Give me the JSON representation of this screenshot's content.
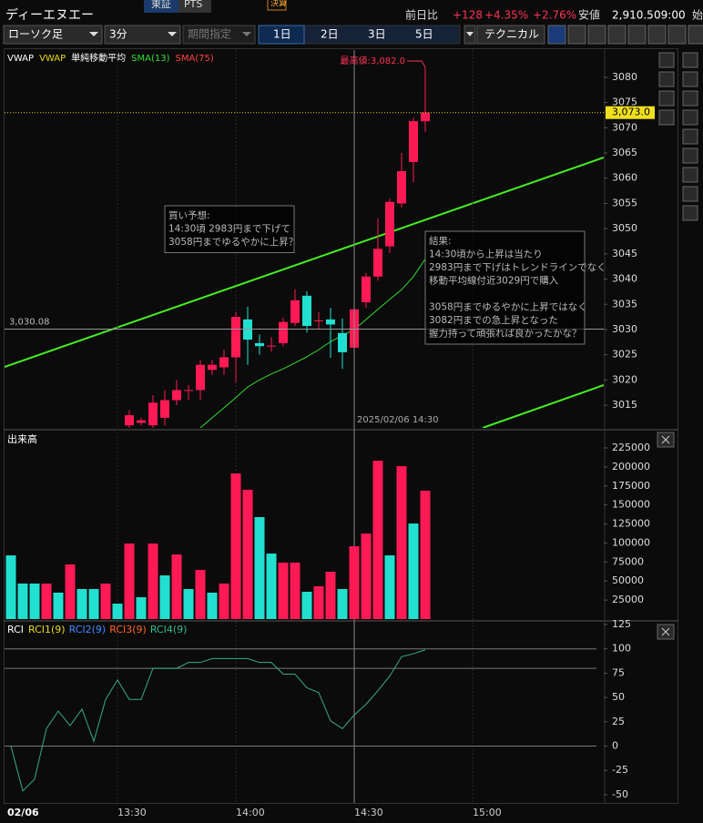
{
  "header": {
    "ticker_name": "ディーエヌエー",
    "market": "東証",
    "pts": "PTS",
    "earnings": "決算",
    "change_label": "前日比",
    "change": "+128",
    "change_pct": "+4.35%",
    "change_pct2": "+2.76%",
    "low_label": "安値",
    "low": "2,910.5",
    "time": "09:00",
    "right_cut": "始"
  },
  "toolbar": {
    "chart_type": "ローソク足",
    "interval": "3分",
    "period": "期間指定",
    "ranges": [
      "1日",
      "2日",
      "3日",
      "5日"
    ],
    "technical": "テクニカル"
  },
  "chart_data": [
    {
      "type": "candlestick",
      "legend": [
        {
          "name": "VWAP",
          "color": "#ffffff"
        },
        {
          "name": "VWAP",
          "color": "#e8d820"
        },
        {
          "name": "単純移動平均",
          "color": "#ffffff"
        },
        {
          "name": "SMA(13)",
          "color": "#33dd33"
        },
        {
          "name": "SMA(75)",
          "color": "#ff4444"
        }
      ],
      "categories": [
        "13:03",
        "13:06",
        "13:09",
        "13:12",
        "13:15",
        "13:18",
        "13:21",
        "13:24",
        "13:27",
        "13:30",
        "13:33",
        "13:36",
        "13:39",
        "13:42",
        "13:45",
        "13:48",
        "13:51",
        "13:54",
        "13:57",
        "14:00",
        "14:03",
        "14:06",
        "14:09",
        "14:12",
        "14:15",
        "14:18",
        "14:21",
        "14:24",
        "14:27",
        "14:30",
        "14:33",
        "14:36",
        "14:39",
        "14:42",
        "14:45",
        "14:48"
      ],
      "open": [
        null,
        null,
        null,
        null,
        null,
        null,
        null,
        null,
        null,
        null,
        3011,
        3011.5,
        3011,
        3012.5,
        3016,
        3018,
        3018,
        3022,
        3022.5,
        3024.5,
        3032,
        3027.3,
        3026.8,
        3027.3,
        3031.3,
        3036.7,
        3031.8,
        3032,
        3029.3,
        3026.4,
        3035.4,
        3040.5,
        3046.5,
        3055,
        3063.2,
        3071.3
      ],
      "high": [
        null,
        null,
        null,
        null,
        null,
        null,
        null,
        null,
        null,
        null,
        3014,
        3012.5,
        3017,
        3018,
        3020,
        3019,
        3024,
        3024,
        3026,
        3033.5,
        3034.5,
        3029,
        3028.5,
        3032.3,
        3038,
        3037.6,
        3033.5,
        3034.3,
        3032.2,
        3035,
        3041.2,
        3052,
        3056,
        3065,
        3071.9,
        3082
      ],
      "low": [
        null,
        null,
        null,
        null,
        null,
        null,
        null,
        null,
        null,
        null,
        3010,
        3011,
        3010,
        3011,
        3015,
        3016,
        3016,
        3021,
        3021,
        3019.5,
        3023,
        3025,
        3025.6,
        3026.7,
        3030.7,
        3029.4,
        3030,
        3024.4,
        3022.2,
        3025,
        3034.3,
        3039.7,
        3045.2,
        3054.2,
        3059.2,
        3069.2
      ],
      "close": [
        null,
        null,
        null,
        null,
        null,
        null,
        null,
        null,
        null,
        null,
        3013,
        3012,
        3015.5,
        3016,
        3018,
        3018,
        3023,
        3023,
        3024.5,
        3032.5,
        3028,
        3026.7,
        3026.8,
        3031.5,
        3035.8,
        3030.7,
        3031.8,
        3031,
        3025.5,
        3034,
        3040.5,
        3046,
        3055.3,
        3061.4,
        3071.3,
        3073
      ],
      "up_color": "#ff1a55",
      "down_color": "#22e0d0",
      "series": [
        {
          "color": "#33dd33",
          "values": [
            null,
            null,
            null,
            null,
            null,
            null,
            null,
            null,
            null,
            null,
            null,
            null,
            null,
            null,
            null,
            null,
            3010.5,
            3012.5,
            3014.5,
            3016.5,
            3018.6,
            3020,
            3021.2,
            3022.2,
            3023.4,
            3024.6,
            3026,
            3027.6,
            3028.8,
            3030,
            3032,
            3034,
            3036,
            3037.9,
            3040.5,
            3044
          ]
        }
      ],
      "ylim": [
        3010.5,
        3085.4
      ],
      "yticks": [
        3015,
        3020,
        3025,
        3030,
        3035,
        3040,
        3045,
        3050,
        3055,
        3060,
        3065,
        3070,
        3075,
        3080
      ],
      "xticks": [
        "13:30",
        "14:00",
        "14:30",
        "15:00"
      ],
      "date_label": "02/06",
      "hline": {
        "value": 3030.08,
        "label": "3,030.08"
      },
      "last_price": {
        "value": 3073.0,
        "label": "3,073.0"
      },
      "high_annotation": {
        "value": 3082.0,
        "label": "最高値:3,082.0"
      },
      "crosshair": {
        "x": "14:30",
        "label": "2025/02/06 14:30"
      },
      "notes": [
        {
          "paragraphs": [
            [
              "買い予想:",
              "14:30頃 2983円まで下げて",
              "3058円までゆるやかに上昇？"
            ]
          ]
        },
        {
          "paragraphs": [
            [
              "結果:",
              "14:30頃から上昇は当たり",
              "2983円まで下げはトレンドラインでなく",
              "移動平均線付近3029円で購入"
            ],
            [
              "3058円までゆるやかに上昇ではなく",
              "3082円までの急上昇となった",
              "握力持って頑張れば良かったかな？"
            ]
          ]
        }
      ]
    },
    {
      "type": "bar",
      "title": "出来高",
      "values": [
        83700,
        46700,
        46700,
        46700,
        34700,
        71800,
        39500,
        39500,
        46700,
        20300,
        99300,
        28700,
        99300,
        57400,
        84900,
        39500,
        64600,
        34700,
        46700,
        191400,
        169900,
        134000,
        86100,
        74200,
        74200,
        35900,
        43100,
        62200,
        39500,
        95700,
        112400,
        208100,
        83700,
        201000,
        125600,
        168700
      ],
      "colors": [
        "#22e0d0",
        "#22e0d0",
        "#22e0d0",
        "#ff1a55",
        "#22e0d0",
        "#ff1a55",
        "#22e0d0",
        "#22e0d0",
        "#ff1a55",
        "#22e0d0",
        "#ff1a55",
        "#22e0d0",
        "#ff1a55",
        "#22e0d0",
        "#ff1a55",
        "#22e0d0",
        "#ff1a55",
        "#22e0d0",
        "#ff1a55",
        "#ff1a55",
        "#ff1a55",
        "#22e0d0",
        "#22e0d0",
        "#ff1a55",
        "#ff1a55",
        "#22e0d0",
        "#ff1a55",
        "#ff1a55",
        "#22e0d0",
        "#ff1a55",
        "#ff1a55",
        "#ff1a55",
        "#22e0d0",
        "#ff1a55",
        "#22e0d0",
        "#ff1a55"
      ],
      "ylim": [
        0,
        245300
      ],
      "yticks": [
        25000,
        50000,
        75000,
        100000,
        125000,
        150000,
        175000,
        200000,
        225000
      ]
    },
    {
      "type": "line",
      "title": "RCI",
      "legend": [
        {
          "name": "RCI1(9)",
          "color": "#e8d820"
        },
        {
          "name": "RCI2(9)",
          "color": "#4488ff"
        },
        {
          "name": "RCI3(9)",
          "color": "#ff6622"
        },
        {
          "name": "RCI4(9)",
          "color": "#33bb88"
        }
      ],
      "series": [
        {
          "color": "#3aaa8a",
          "values": [
            0,
            -46,
            -34,
            18,
            36,
            21,
            38,
            5,
            48,
            68,
            48,
            48,
            80,
            80,
            80,
            86,
            86,
            90,
            90,
            90,
            90,
            86,
            86,
            74,
            74,
            60,
            55,
            26,
            18,
            32,
            43,
            57,
            72,
            92,
            95,
            99
          ]
        }
      ],
      "ylim": [
        -56.6,
        125
      ],
      "yticks": [
        125,
        100,
        75,
        50,
        25,
        0,
        -25,
        -50
      ],
      "ref_lines": [
        100,
        80,
        0
      ]
    }
  ]
}
